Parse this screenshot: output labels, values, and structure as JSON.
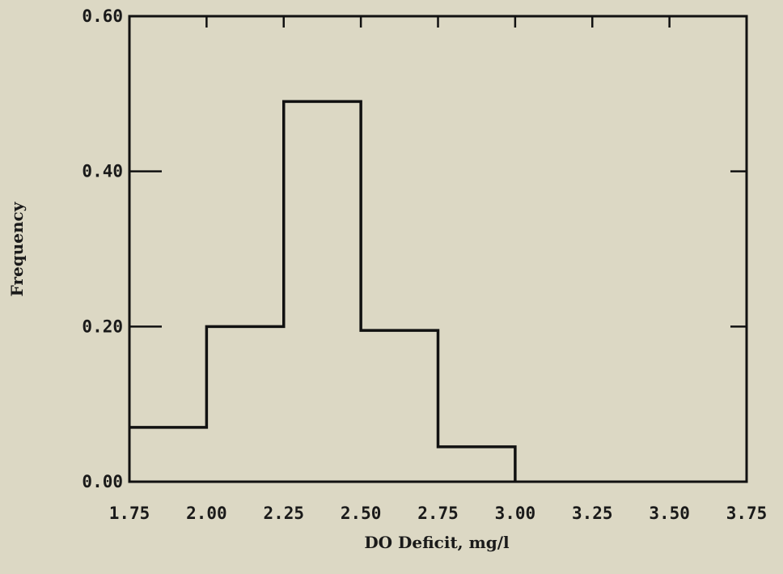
{
  "chart_data": {
    "type": "histogram",
    "title": "",
    "xlabel": "DO Deficit, mg/l",
    "ylabel": "Frequency",
    "xlim": [
      1.75,
      3.75
    ],
    "ylim": [
      0.0,
      0.6
    ],
    "x_ticks": [
      "1.75",
      "2.00",
      "2.25",
      "2.50",
      "2.75",
      "3.00",
      "3.25",
      "3.50",
      "3.75"
    ],
    "y_ticks": [
      "0.00",
      "0.20",
      "0.40",
      "0.60"
    ],
    "bins": [
      {
        "from": 1.75,
        "to": 2.0,
        "value": 0.07
      },
      {
        "from": 2.0,
        "to": 2.25,
        "value": 0.2
      },
      {
        "from": 2.25,
        "to": 2.5,
        "value": 0.49
      },
      {
        "from": 2.5,
        "to": 2.75,
        "value": 0.195
      },
      {
        "from": 2.75,
        "to": 3.0,
        "value": 0.045
      }
    ],
    "grid": false,
    "line_color": "#111111"
  }
}
